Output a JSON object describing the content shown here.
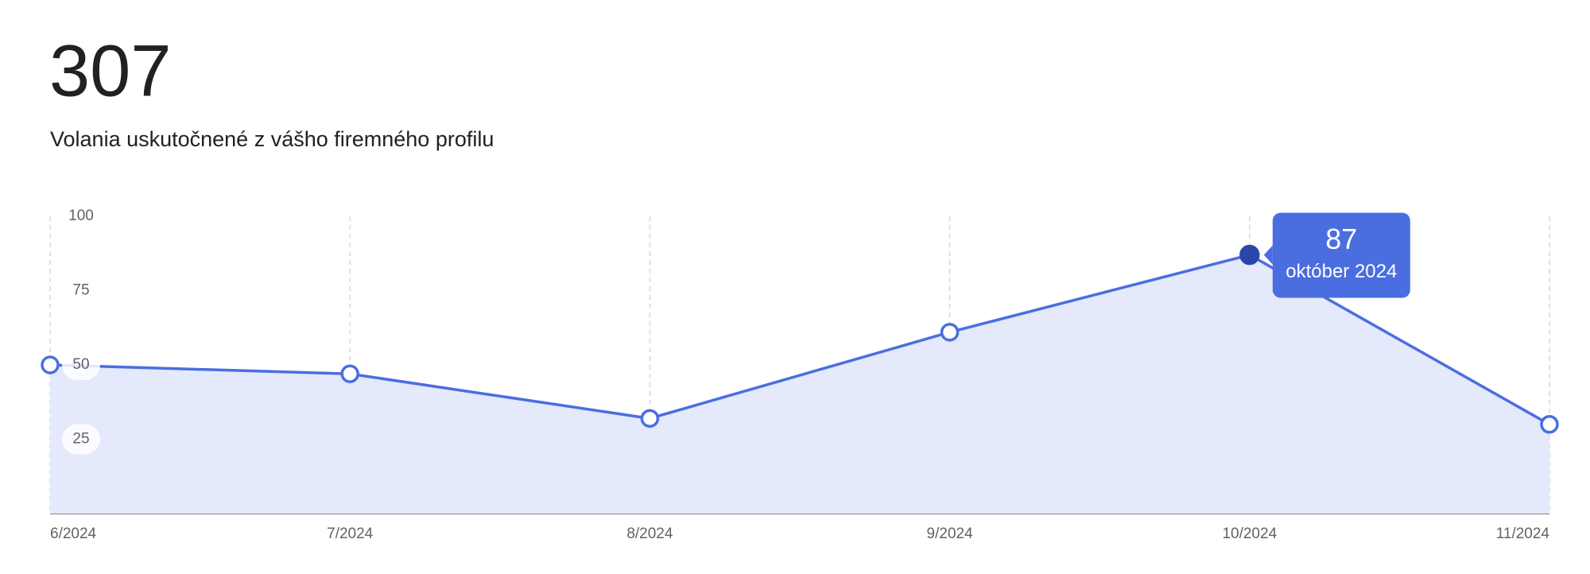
{
  "chart_data": {
    "type": "area",
    "total": 307,
    "subtitle": "Volania uskutočnené z vášho firemného profilu",
    "categories": [
      "6/2024",
      "7/2024",
      "8/2024",
      "9/2024",
      "10/2024",
      "11/2024"
    ],
    "series": [
      {
        "color": "#4a6ee0",
        "values": [
          50,
          47,
          32,
          61,
          87,
          30
        ]
      }
    ],
    "ylim": [
      0,
      100
    ],
    "yticks": [
      25,
      50,
      75,
      100
    ],
    "grid": true,
    "active_point": 4,
    "tooltip_label": "október 2024"
  }
}
